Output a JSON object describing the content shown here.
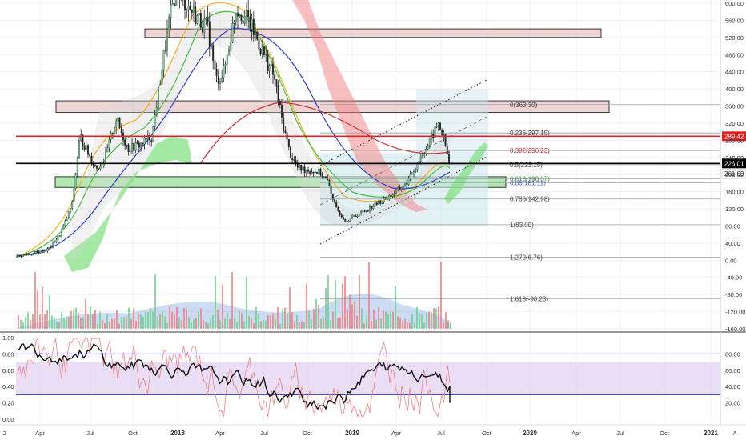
{
  "chart_data": {
    "type": "candlestick",
    "price_axis": {
      "ticks": [
        "600.00",
        "560.00",
        "520.00",
        "480.00",
        "440.00",
        "400.00",
        "360.00",
        "320.00",
        "280.00",
        "240.00",
        "200.00",
        "160.00",
        "120.00",
        "80.00",
        "40.00",
        "0.00",
        "-40.00",
        "-80.00",
        "-120.00",
        "-160.00"
      ],
      "range": [
        -160,
        610
      ]
    },
    "time_axis": {
      "ticks": [
        "Apr",
        "Jul",
        "Oct",
        "2018",
        "Apr",
        "Jul",
        "Oct",
        "2019",
        "Apr",
        "Jul",
        "Oct",
        "2020",
        "Apr",
        "Jul",
        "Oct",
        "2021",
        "A"
      ],
      "corner_label": "Z"
    },
    "price_labels": [
      {
        "text": "289.42",
        "color": "#e02020",
        "value": 289.42
      },
      {
        "text": "226.01",
        "color": "#000000",
        "value": 226.01
      },
      {
        "text": "201.99",
        "color": "#ffffff",
        "value": 201.99
      }
    ],
    "horizontal_lines": [
      {
        "value": 289.42,
        "color": "#e02020"
      },
      {
        "value": 226.01,
        "color": "#000000"
      }
    ],
    "fib_levels": [
      {
        "text": "0(363.30)",
        "value": 363.3,
        "color": "#444444"
      },
      {
        "text": "0.236(297.15)",
        "value": 297.15,
        "color": "#444444"
      },
      {
        "text": "0.382(256.23)",
        "value": 256.23,
        "color": "#c03030"
      },
      {
        "text": "0.5(223.15)",
        "value": 223.15,
        "color": "#444444"
      },
      {
        "text": "0.618(190.07)",
        "value": 190.07,
        "color": "#3a8a3a"
      },
      {
        "text": "0.65(181.11)",
        "value": 181.11,
        "color": "#4a5ad0"
      },
      {
        "text": "0.786(142.98)",
        "value": 142.98,
        "color": "#444444"
      },
      {
        "text": "1(83.00)",
        "value": 83.0,
        "color": "#444444"
      },
      {
        "text": "1.272(6.76)",
        "value": 6.76,
        "color": "#444444"
      },
      {
        "text": "1.618(-90.23)",
        "value": -90.23,
        "color": "#444444"
      }
    ],
    "zones": [
      {
        "name": "resistance-zone-top",
        "low": 520,
        "high": 540,
        "color": "#e8c8c8"
      },
      {
        "name": "resistance-zone-mid",
        "low": 345,
        "high": 372,
        "color": "#e8c8c8"
      },
      {
        "name": "support-zone",
        "low": 170,
        "high": 195,
        "color": "#98e098"
      }
    ],
    "oscillator": {
      "left_ticks": [
        "1.00",
        "0.80",
        "0.60",
        "0.40",
        "0.20",
        "0.00"
      ],
      "right_ticks": [
        "80.00",
        "60.00",
        "40.00",
        "20.00"
      ],
      "upper_line": 80,
      "lower_line": 30,
      "band": [
        30,
        70
      ]
    },
    "colors": {
      "up": "#26a69a",
      "down": "#ef5350",
      "candle": "#222222",
      "ma_fast": "#f0b020",
      "ma_mid": "#40c040",
      "ma_slow": "#3040d0",
      "ma_long": "#d03030",
      "cloud_green": "#7ee07e",
      "cloud_red": "#f08080"
    }
  }
}
